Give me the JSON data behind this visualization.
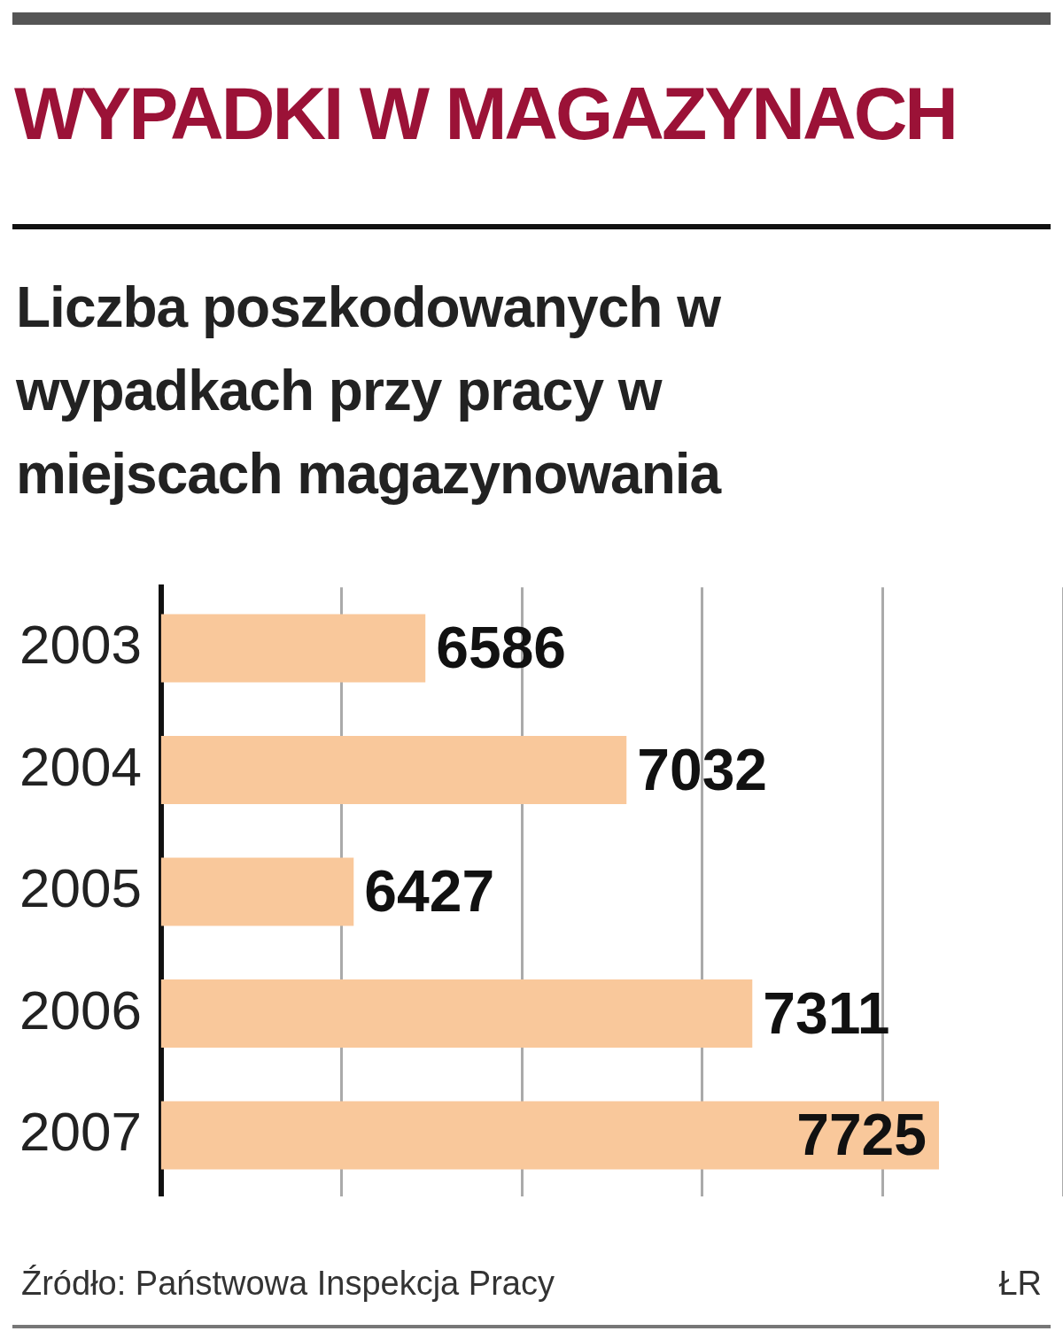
{
  "chart_data": {
    "type": "bar",
    "orientation": "horizontal",
    "title": "WYPADKI W MAGAZYNACH",
    "subtitle": "Liczba poszkodowanych w wypadkach przy pracy w miejscach magazynowania",
    "categories": [
      "2003",
      "2004",
      "2005",
      "2006",
      "2007"
    ],
    "values": [
      6586,
      7032,
      6427,
      7311,
      7725
    ],
    "color": "#f9c89b",
    "xlim": [
      6000,
      8000
    ],
    "xticks": [
      {
        "value": 6400,
        "label": null
      },
      {
        "value": 6800,
        "label": null
      },
      {
        "value": 7200,
        "label": null
      },
      {
        "value": 7600,
        "label": null
      },
      {
        "value": 8000,
        "label": null
      }
    ],
    "tick_labels": "y",
    "grid": "x",
    "data_labels": true,
    "legend": false,
    "annotations": [
      "Źródło: Państwowa Inspekcja Pracy",
      "ŁR"
    ]
  }
}
